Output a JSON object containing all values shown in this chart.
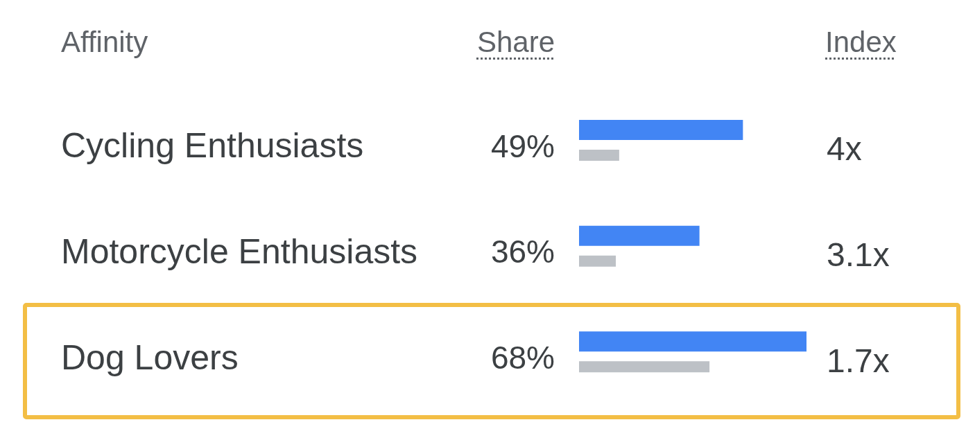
{
  "chart_data": {
    "type": "bar",
    "orientation": "horizontal",
    "ylabel": "Affinity",
    "xlabel": "Share",
    "categories": [
      "Cycling Enthusiasts",
      "Motorcycle Enthusiasts",
      "Dog Lovers"
    ],
    "series": [
      {
        "color": "#4285f4",
        "values": [
          49,
          36,
          68
        ],
        "value_labels": [
          "49%",
          "36%",
          "68%"
        ]
      },
      {
        "color": "#bdc1c6",
        "values": [
          12,
          11,
          39
        ]
      }
    ],
    "annotations": [
      "Index",
      "4x",
      "3.1x",
      "1.7x"
    ]
  }
}
